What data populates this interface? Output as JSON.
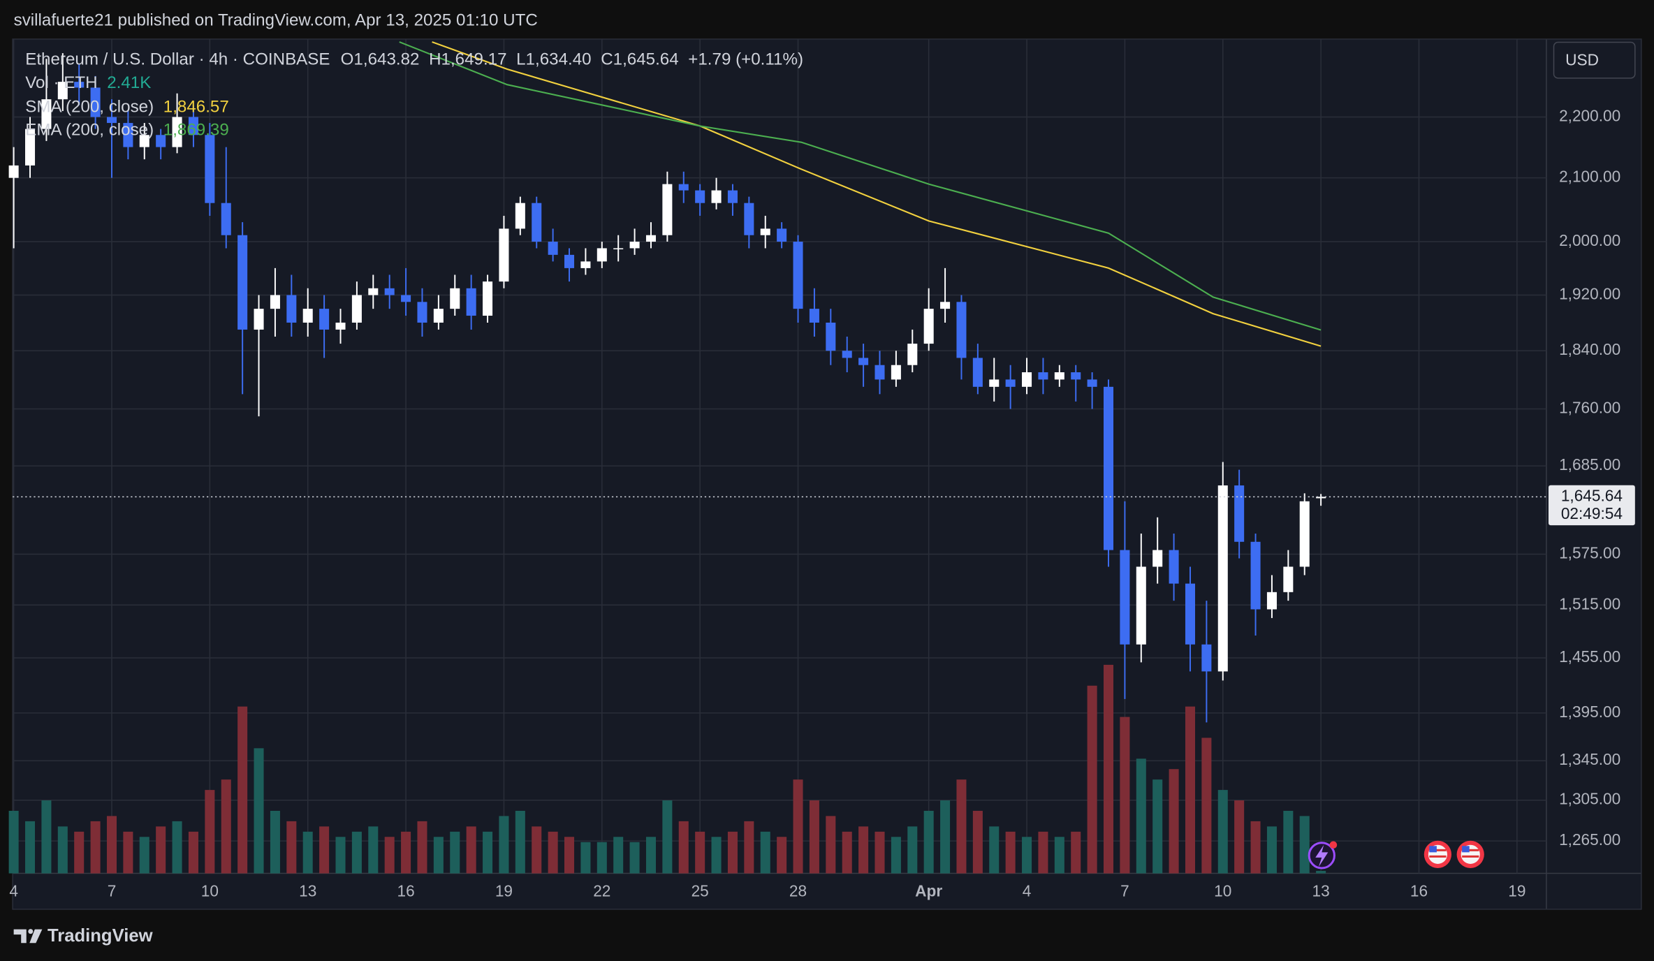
{
  "chart_data": {
    "type": "candlestick",
    "header": "svillafuerte21 published on TradingView.com, Apr 13, 2025 01:10 UTC",
    "title": "Ethereum / U.S. Dollar · 4h · COINBASE",
    "ohlc_labels": [
      "O1,643.82",
      "H1,649.17",
      "L1,634.40",
      "C1,645.64"
    ],
    "change": "+1.79 (+0.11%)",
    "currency": "USD",
    "brand": "TradingView",
    "log_scale": true,
    "grid": true,
    "up_color": "#ffffff",
    "down_color": "#3d6df2",
    "ylim": [
      1234,
      2335
    ],
    "yticks": [
      {
        "value": 2200,
        "label": "2,200.00"
      },
      {
        "value": 2100,
        "label": "2,100.00"
      },
      {
        "value": 2000,
        "label": "2,000.00"
      },
      {
        "value": 1920,
        "label": "1,920.00"
      },
      {
        "value": 1840,
        "label": "1,840.00"
      },
      {
        "value": 1760,
        "label": "1,760.00"
      },
      {
        "value": 1685,
        "label": "1,685.00"
      },
      {
        "value": 1575,
        "label": "1,575.00"
      },
      {
        "value": 1515,
        "label": "1,515.00"
      },
      {
        "value": 1455,
        "label": "1,455.00"
      },
      {
        "value": 1395,
        "label": "1,395.00"
      },
      {
        "value": 1345,
        "label": "1,345.00"
      },
      {
        "value": 1305,
        "label": "1,305.00"
      },
      {
        "value": 1265,
        "label": "1,265.00"
      }
    ],
    "xlim": [
      4,
      50.9
    ],
    "xticks": [
      4,
      7,
      10,
      13,
      16,
      19,
      22,
      25,
      28,
      {
        "value": 32,
        "label": "Apr"
      },
      {
        "value": 35,
        "label": "4"
      },
      {
        "value": 38,
        "label": "7"
      },
      {
        "value": 41,
        "label": "10"
      },
      {
        "value": 44,
        "label": "13"
      },
      {
        "value": 47,
        "label": "16"
      },
      {
        "value": 50,
        "label": "19"
      }
    ],
    "last_price": {
      "value": 1645.64,
      "label": "1,645.64"
    },
    "countdown": "02:49:54",
    "x": [
      4,
      4.5,
      5,
      5.5,
      6,
      6.5,
      7,
      7.5,
      8,
      8.5,
      9,
      9.5,
      10,
      10.5,
      11,
      11.5,
      12,
      12.5,
      13,
      13.5,
      14,
      14.5,
      15,
      15.5,
      16,
      16.5,
      17,
      17.5,
      18,
      18.5,
      19,
      19.5,
      20,
      20.5,
      21,
      21.5,
      22,
      22.5,
      23,
      23.5,
      24,
      24.5,
      25,
      25.5,
      26,
      26.5,
      27,
      27.5,
      28,
      28.5,
      29,
      29.5,
      30,
      30.5,
      31,
      31.5,
      32,
      32.5,
      33,
      33.5,
      34,
      34.5,
      35,
      35.5,
      36,
      36.5,
      37,
      37.5,
      38,
      38.5,
      39,
      39.5,
      40,
      40.5,
      41,
      41.5,
      42,
      42.5,
      43,
      43.5,
      44
    ],
    "candles": [
      [
        2100,
        2150,
        1990,
        2120
      ],
      [
        2120,
        2200,
        2100,
        2180
      ],
      [
        2180,
        2300,
        2160,
        2230
      ],
      [
        2230,
        2310,
        2210,
        2260
      ],
      [
        2260,
        2290,
        2220,
        2250
      ],
      [
        2250,
        2270,
        2180,
        2200
      ],
      [
        2200,
        2230,
        2100,
        2190
      ],
      [
        2190,
        2210,
        2130,
        2150
      ],
      [
        2150,
        2190,
        2130,
        2170
      ],
      [
        2170,
        2180,
        2130,
        2150
      ],
      [
        2150,
        2240,
        2140,
        2200
      ],
      [
        2200,
        2220,
        2150,
        2170
      ],
      [
        2170,
        2190,
        2040,
        2060
      ],
      [
        2060,
        2150,
        1990,
        2010
      ],
      [
        2010,
        2030,
        1780,
        1870
      ],
      [
        1870,
        1920,
        1750,
        1900
      ],
      [
        1900,
        1960,
        1860,
        1920
      ],
      [
        1920,
        1950,
        1860,
        1880
      ],
      [
        1880,
        1930,
        1860,
        1900
      ],
      [
        1900,
        1920,
        1830,
        1870
      ],
      [
        1870,
        1900,
        1850,
        1880
      ],
      [
        1880,
        1940,
        1870,
        1920
      ],
      [
        1920,
        1950,
        1900,
        1930
      ],
      [
        1930,
        1950,
        1900,
        1920
      ],
      [
        1920,
        1960,
        1890,
        1910
      ],
      [
        1910,
        1930,
        1860,
        1880
      ],
      [
        1880,
        1920,
        1870,
        1900
      ],
      [
        1900,
        1950,
        1890,
        1930
      ],
      [
        1930,
        1950,
        1870,
        1890
      ],
      [
        1890,
        1950,
        1880,
        1940
      ],
      [
        1940,
        2040,
        1930,
        2020
      ],
      [
        2020,
        2070,
        2010,
        2060
      ],
      [
        2060,
        2070,
        1990,
        2000
      ],
      [
        2000,
        2020,
        1970,
        1980
      ],
      [
        1980,
        1990,
        1940,
        1960
      ],
      [
        1960,
        1990,
        1950,
        1970
      ],
      [
        1970,
        2000,
        1960,
        1990
      ],
      [
        1990,
        2010,
        1970,
        1990
      ],
      [
        1990,
        2020,
        1980,
        2000
      ],
      [
        2000,
        2030,
        1990,
        2010
      ],
      [
        2010,
        2110,
        2000,
        2090
      ],
      [
        2090,
        2110,
        2060,
        2080
      ],
      [
        2080,
        2090,
        2040,
        2060
      ],
      [
        2060,
        2100,
        2050,
        2080
      ],
      [
        2080,
        2090,
        2040,
        2060
      ],
      [
        2060,
        2070,
        1990,
        2010
      ],
      [
        2010,
        2040,
        1990,
        2020
      ],
      [
        2020,
        2030,
        1990,
        2000
      ],
      [
        2000,
        2010,
        1880,
        1900
      ],
      [
        1900,
        1930,
        1860,
        1880
      ],
      [
        1880,
        1900,
        1820,
        1840
      ],
      [
        1840,
        1860,
        1810,
        1830
      ],
      [
        1830,
        1850,
        1790,
        1820
      ],
      [
        1820,
        1840,
        1780,
        1800
      ],
      [
        1800,
        1840,
        1790,
        1820
      ],
      [
        1820,
        1870,
        1810,
        1850
      ],
      [
        1850,
        1930,
        1840,
        1900
      ],
      [
        1900,
        1960,
        1880,
        1910
      ],
      [
        1910,
        1920,
        1800,
        1830
      ],
      [
        1830,
        1850,
        1780,
        1790
      ],
      [
        1790,
        1830,
        1770,
        1800
      ],
      [
        1800,
        1820,
        1760,
        1790
      ],
      [
        1790,
        1830,
        1780,
        1810
      ],
      [
        1810,
        1830,
        1780,
        1800
      ],
      [
        1800,
        1820,
        1790,
        1810
      ],
      [
        1810,
        1820,
        1770,
        1800
      ],
      [
        1800,
        1810,
        1760,
        1790
      ],
      [
        1790,
        1800,
        1560,
        1580
      ],
      [
        1580,
        1640,
        1410,
        1470
      ],
      [
        1470,
        1600,
        1450,
        1560
      ],
      [
        1560,
        1620,
        1540,
        1580
      ],
      [
        1580,
        1600,
        1520,
        1540
      ],
      [
        1540,
        1560,
        1440,
        1470
      ],
      [
        1470,
        1520,
        1385,
        1440
      ],
      [
        1440,
        1690,
        1430,
        1660
      ],
      [
        1660,
        1680,
        1570,
        1590
      ],
      [
        1590,
        1600,
        1480,
        1510
      ],
      [
        1510,
        1550,
        1500,
        1530
      ],
      [
        1530,
        1580,
        1520,
        1560
      ],
      [
        1560,
        1650,
        1550,
        1640
      ],
      [
        1643.82,
        1649.17,
        1634.4,
        1645.64
      ]
    ],
    "volume": {
      "name": "Vol · ETH",
      "last_label": "2.41K",
      "label_color": "#22ab94",
      "up_color": "#1d5f5b",
      "down_color": "#7e2d36",
      "vlim": [
        0,
        800
      ],
      "values": [
        60,
        50,
        70,
        45,
        40,
        50,
        55,
        40,
        35,
        45,
        50,
        40,
        80,
        90,
        160,
        120,
        60,
        50,
        40,
        45,
        35,
        40,
        45,
        35,
        40,
        50,
        35,
        40,
        45,
        40,
        55,
        60,
        45,
        40,
        35,
        30,
        30,
        35,
        30,
        35,
        70,
        50,
        40,
        35,
        40,
        50,
        40,
        35,
        90,
        70,
        55,
        40,
        45,
        40,
        35,
        45,
        60,
        70,
        90,
        60,
        45,
        40,
        35,
        40,
        35,
        40,
        180,
        200,
        150,
        110,
        90,
        100,
        160,
        130,
        80,
        70,
        50,
        45,
        60,
        55,
        2.41
      ]
    },
    "series": [
      {
        "name": "SMA (200, close)",
        "color": "#f2d13f",
        "last_label": "1,846.57",
        "x": [
          16.8,
          19.1,
          25,
          28.1,
          32,
          37.5,
          40.7,
          44
        ],
        "values": [
          2330,
          2282,
          2185,
          2114,
          2032,
          1960,
          1893,
          1846.57
        ]
      },
      {
        "name": "EMA (200, close)",
        "color": "#4caf50",
        "last_label": "1,869.39",
        "x": [
          15.8,
          19.1,
          25,
          28.1,
          32,
          37.5,
          40.7,
          44
        ],
        "values": [
          2330,
          2255,
          2185,
          2158,
          2090,
          2013,
          1917,
          1869.39
        ]
      }
    ]
  }
}
